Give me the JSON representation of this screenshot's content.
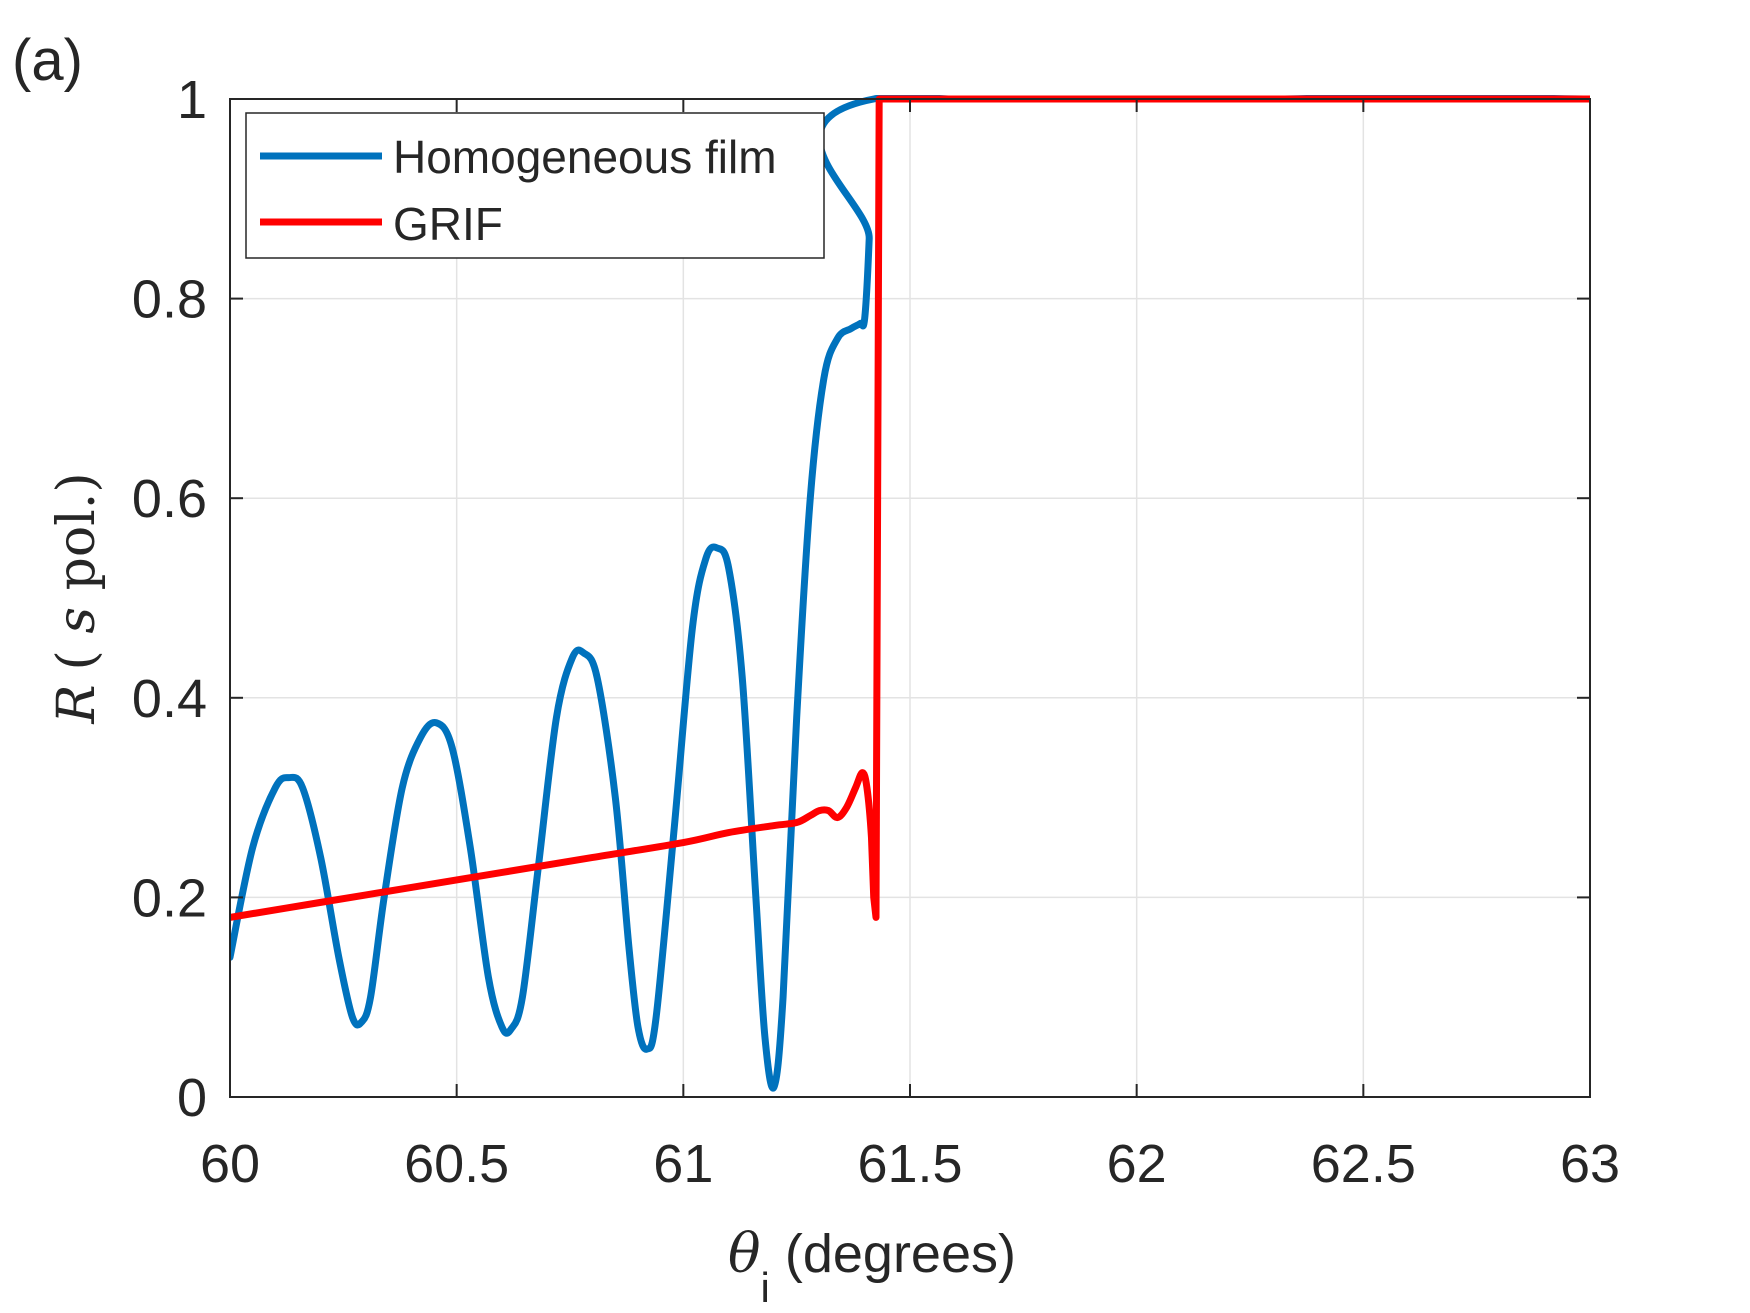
{
  "panel_label": "(a)",
  "chart_data": {
    "type": "line",
    "xlabel_symbol": "θ",
    "xlabel_subscript": "i",
    "xlabel_rest": " (degrees)",
    "ylabel_var": "R",
    "ylabel_pol_open": "( ",
    "ylabel_pol_s": "s",
    "ylabel_pol_rest": " pol.)",
    "xlim": [
      60,
      63
    ],
    "ylim": [
      0,
      1
    ],
    "xticks": [
      60,
      60.5,
      61,
      61.5,
      62,
      62.5,
      63
    ],
    "xtick_labels": [
      "60",
      "60.5",
      "61",
      "61.5",
      "62",
      "62.5",
      "63"
    ],
    "yticks": [
      0,
      0.2,
      0.4,
      0.6,
      0.8,
      1
    ],
    "ytick_labels": [
      "0",
      "0.2",
      "0.4",
      "0.6",
      "0.8",
      "1"
    ],
    "grid": true,
    "legend_position": "top-left",
    "series": [
      {
        "name": "Homogeneous film",
        "color": "#0072BD",
        "x": [
          60.0,
          60.05,
          60.1,
          60.13,
          60.16,
          60.2,
          60.24,
          60.27,
          60.29,
          60.31,
          60.34,
          60.38,
          60.42,
          60.455,
          60.49,
          60.53,
          60.57,
          60.6,
          60.62,
          60.645,
          60.68,
          60.72,
          60.755,
          60.78,
          60.81,
          60.85,
          60.88,
          60.9,
          60.92,
          60.94,
          60.98,
          61.02,
          61.05,
          61.075,
          61.1,
          61.13,
          61.16,
          61.18,
          61.2,
          61.22,
          61.25,
          61.28,
          61.31,
          61.34,
          61.37,
          61.39,
          61.4,
          61.41,
          61.42,
          63.0
        ],
        "y": [
          0.14,
          0.25,
          0.31,
          0.32,
          0.31,
          0.24,
          0.14,
          0.08,
          0.075,
          0.1,
          0.2,
          0.31,
          0.36,
          0.375,
          0.35,
          0.25,
          0.12,
          0.07,
          0.068,
          0.1,
          0.23,
          0.38,
          0.44,
          0.445,
          0.42,
          0.3,
          0.15,
          0.07,
          0.048,
          0.08,
          0.27,
          0.47,
          0.54,
          0.55,
          0.53,
          0.42,
          0.2,
          0.06,
          0.01,
          0.1,
          0.38,
          0.6,
          0.72,
          0.76,
          0.77,
          0.775,
          0.78,
          0.86,
          1.0,
          1.0
        ]
      },
      {
        "name": "GRIF",
        "color": "#FF0000",
        "x": [
          60.0,
          60.2,
          60.4,
          60.6,
          60.8,
          61.0,
          61.1,
          61.2,
          61.25,
          61.28,
          61.3,
          61.32,
          61.34,
          61.36,
          61.38,
          61.395,
          61.405,
          61.415,
          61.42,
          61.425,
          61.432,
          61.44,
          63.0
        ],
        "y": [
          0.18,
          0.195,
          0.21,
          0.225,
          0.24,
          0.255,
          0.265,
          0.272,
          0.275,
          0.282,
          0.287,
          0.287,
          0.28,
          0.29,
          0.31,
          0.325,
          0.31,
          0.26,
          0.2,
          0.18,
          1.0,
          1.0,
          1.0
        ]
      }
    ]
  }
}
